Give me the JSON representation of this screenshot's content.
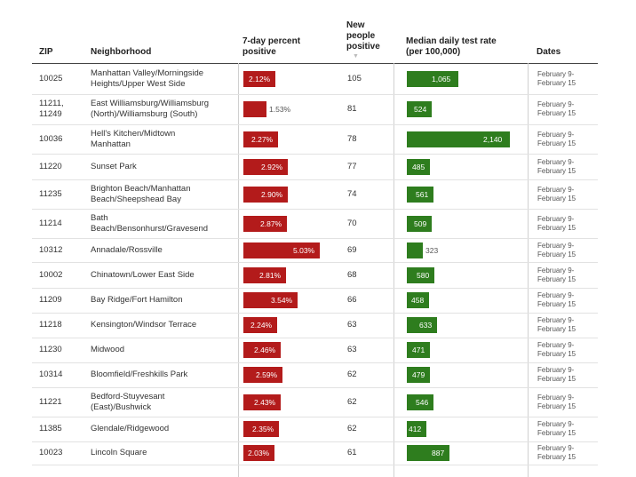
{
  "headers": {
    "zip": "ZIP",
    "neighborhood": "Neighborhood",
    "pct": "7-day percent\npositive",
    "new": "New\npeople\npositive",
    "rate": "Median daily test rate\n(per 100,000)",
    "dates": "Dates",
    "sort_indicator": "▼"
  },
  "chart_data": {
    "type": "table",
    "pct_max": 5.03,
    "rate_max": 2140,
    "columns": [
      "ZIP",
      "Neighborhood",
      "7-day percent positive",
      "New people positive",
      "Median daily test rate (per 100,000)",
      "Dates"
    ],
    "rows": [
      {
        "zip": "10025",
        "hood": "Manhattan Valley/Morningside\nHeights/Upper West Side",
        "pct": 2.12,
        "pct_label": "2.12%",
        "new": "105",
        "rate": 1065,
        "rate_label": "1,065",
        "dates": "February 9-\nFebruary 15"
      },
      {
        "zip": "11211,\n11249",
        "hood": "East Williamsburg/Williamsburg\n(North)/Williamsburg (South)",
        "pct": 1.53,
        "pct_label": "1.53%",
        "new": "81",
        "rate": 524,
        "rate_label": "524",
        "dates": "February 9-\nFebruary 15"
      },
      {
        "zip": "10036",
        "hood": "Hell's Kitchen/Midtown\nManhattan",
        "pct": 2.27,
        "pct_label": "2.27%",
        "new": "78",
        "rate": 2140,
        "rate_label": "2,140",
        "dates": "February 9-\nFebruary 15"
      },
      {
        "zip": "11220",
        "hood": "Sunset Park",
        "pct": 2.92,
        "pct_label": "2.92%",
        "new": "77",
        "rate": 485,
        "rate_label": "485",
        "dates": "February 9-\nFebruary 15"
      },
      {
        "zip": "11235",
        "hood": "Brighton Beach/Manhattan\nBeach/Sheepshead Bay",
        "pct": 2.9,
        "pct_label": "2.90%",
        "new": "74",
        "rate": 561,
        "rate_label": "561",
        "dates": "February 9-\nFebruary 15"
      },
      {
        "zip": "11214",
        "hood": "Bath\nBeach/Bensonhurst/Gravesend",
        "pct": 2.87,
        "pct_label": "2.87%",
        "new": "70",
        "rate": 509,
        "rate_label": "509",
        "dates": "February 9-\nFebruary 15"
      },
      {
        "zip": "10312",
        "hood": "Annadale/Rossville",
        "pct": 5.03,
        "pct_label": "5.03%",
        "new": "69",
        "rate": 323,
        "rate_label": "323",
        "dates": "February 9-\nFebruary 15"
      },
      {
        "zip": "10002",
        "hood": "Chinatown/Lower East Side",
        "pct": 2.81,
        "pct_label": "2.81%",
        "new": "68",
        "rate": 580,
        "rate_label": "580",
        "dates": "February 9-\nFebruary 15"
      },
      {
        "zip": "11209",
        "hood": "Bay Ridge/Fort Hamilton",
        "pct": 3.54,
        "pct_label": "3.54%",
        "new": "66",
        "rate": 458,
        "rate_label": "458",
        "dates": "February 9-\nFebruary 15"
      },
      {
        "zip": "11218",
        "hood": "Kensington/Windsor Terrace",
        "pct": 2.24,
        "pct_label": "2.24%",
        "new": "63",
        "rate": 633,
        "rate_label": "633",
        "dates": "February 9-\nFebruary 15"
      },
      {
        "zip": "11230",
        "hood": "Midwood",
        "pct": 2.46,
        "pct_label": "2.46%",
        "new": "63",
        "rate": 471,
        "rate_label": "471",
        "dates": "February 9-\nFebruary 15"
      },
      {
        "zip": "10314",
        "hood": "Bloomfield/Freshkills Park",
        "pct": 2.59,
        "pct_label": "2.59%",
        "new": "62",
        "rate": 479,
        "rate_label": "479",
        "dates": "February 9-\nFebruary 15"
      },
      {
        "zip": "11221",
        "hood": "Bedford-Stuyvesant\n(East)/Bushwick",
        "pct": 2.43,
        "pct_label": "2.43%",
        "new": "62",
        "rate": 546,
        "rate_label": "546",
        "dates": "February 9-\nFebruary 15"
      },
      {
        "zip": "11385",
        "hood": "Glendale/Ridgewood",
        "pct": 2.35,
        "pct_label": "2.35%",
        "new": "62",
        "rate": 412,
        "rate_label": "412",
        "dates": "February 9-\nFebruary 15"
      },
      {
        "zip": "10023",
        "hood": "Lincoln Square",
        "pct": 2.03,
        "pct_label": "2.03%",
        "new": "61",
        "rate": 887,
        "rate_label": "887",
        "dates": "February 9-\nFebruary 15"
      }
    ]
  }
}
